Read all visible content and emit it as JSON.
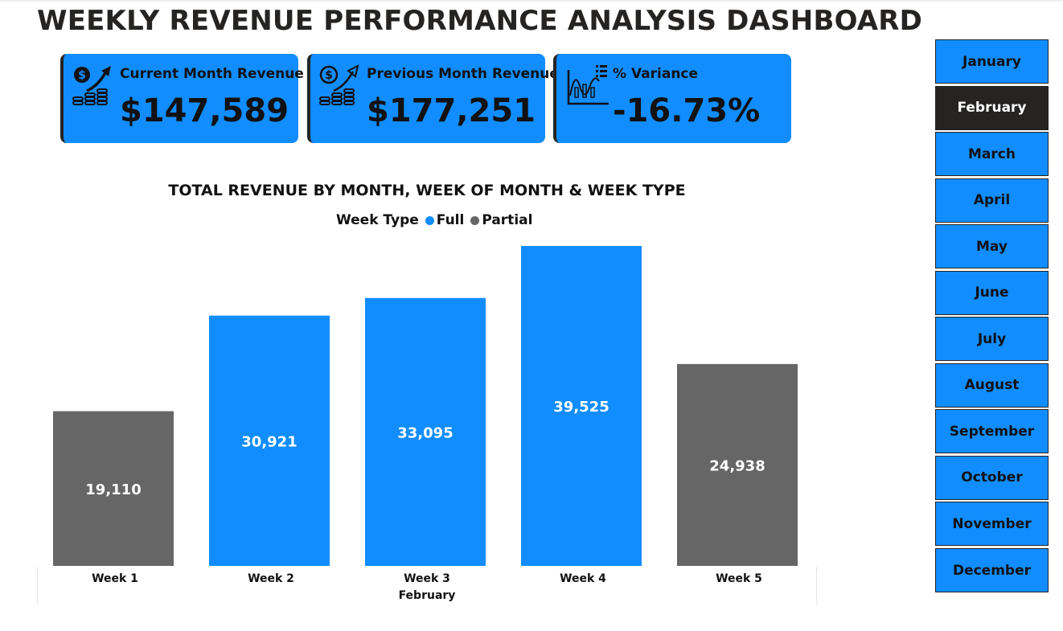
{
  "page": {
    "title": "WEEKLY REVENUE PERFORMANCE ANALYSIS DASHBOARD"
  },
  "kpis": [
    {
      "label": "Current Month Revenue",
      "value": "$147,589",
      "icon": "money-growth-icon"
    },
    {
      "label": "Previous Month Revenue",
      "value": "$177,251",
      "icon": "money-growth-icon"
    },
    {
      "label": "% Variance",
      "value": "-16.73%",
      "icon": "variance-chart-icon"
    }
  ],
  "colors": {
    "accent": "#118dff",
    "partial": "#666666",
    "dark": "#252423",
    "text": "#111111",
    "label_on_bar": "#ffffff"
  },
  "legend": {
    "title": "Week Type",
    "items": [
      {
        "name": "Full",
        "color": "#118dff"
      },
      {
        "name": "Partial",
        "color": "#666666"
      }
    ]
  },
  "chart_data": {
    "type": "bar",
    "title": "TOTAL REVENUE BY MONTH, WEEK OF MONTH & WEEK TYPE",
    "categories": [
      "Week 1",
      "Week 2",
      "Week 3",
      "Week 4",
      "Week 5"
    ],
    "group_label": "February",
    "values": [
      19110,
      30921,
      33095,
      39525,
      24938
    ],
    "value_labels": [
      "19,110",
      "30,921",
      "33,095",
      "39,525",
      "24,938"
    ],
    "week_type": [
      "Partial",
      "Full",
      "Full",
      "Full",
      "Partial"
    ],
    "ylim": [
      0,
      40000
    ],
    "grid": false,
    "legend_position": "top-center"
  },
  "slicer": {
    "months": [
      "January",
      "February",
      "March",
      "April",
      "May",
      "June",
      "July",
      "August",
      "September",
      "October",
      "November",
      "December"
    ],
    "selected": "February"
  }
}
